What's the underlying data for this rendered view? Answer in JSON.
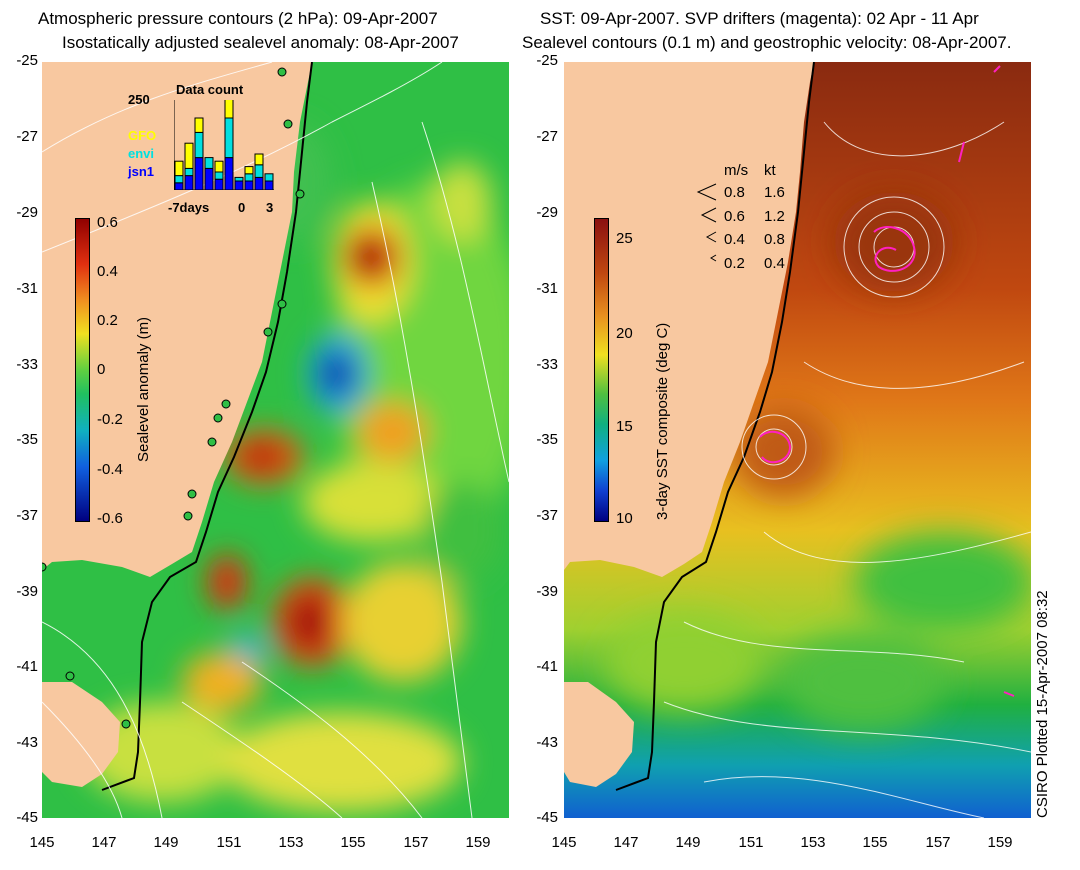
{
  "left_panel": {
    "title_line1": "Atmospheric pressure contours (2 hPa): 09-Apr-2007",
    "title_line2": "Isostatically adjusted sealevel anomaly: 08-Apr-2007",
    "colorbar": {
      "label": "Sealevel anomaly (m)",
      "ticks": [
        "0.6",
        "0.4",
        "0.2",
        "0",
        "-0.2",
        "-0.4",
        "-0.6"
      ],
      "range": [
        -0.6,
        0.6
      ]
    },
    "inset": {
      "title": "Data count",
      "ymax_label": "250",
      "legend": [
        {
          "name": "GFO",
          "color": "#ffff00"
        },
        {
          "name": "envi",
          "color": "#00e0e0"
        },
        {
          "name": "jsn1",
          "color": "#0000ff"
        }
      ],
      "x_labels": [
        "-7days",
        "0",
        "3"
      ],
      "chart_data": {
        "type": "bar",
        "categories": [
          "-7",
          "-6",
          "-5",
          "-4",
          "-3",
          "-2",
          "-1",
          "0",
          "1",
          "2"
        ],
        "series": [
          {
            "name": "jsn1",
            "values": [
              20,
              40,
              90,
              60,
              30,
              90,
              25,
              25,
              35,
              25
            ]
          },
          {
            "name": "envi",
            "values": [
              20,
              20,
              70,
              30,
              20,
              110,
              10,
              20,
              35,
              20
            ]
          },
          {
            "name": "GFO",
            "values": [
              40,
              70,
              40,
              0,
              30,
              60,
              0,
              20,
              30,
              0
            ]
          }
        ]
      }
    }
  },
  "right_panel": {
    "title_line1": "SST: 09-Apr-2007. SVP drifters (magenta): 02 Apr - 11 Apr",
    "title_line2": "Sealevel contours (0.1 m) and geostrophic velocity: 08-Apr-2007.",
    "colorbar": {
      "label": "3-day SST composite (deg C)",
      "ticks": [
        "25",
        "20",
        "15",
        "10"
      ],
      "range": [
        10,
        26
      ]
    },
    "velocity_legend": {
      "header_ms": "m/s",
      "header_kt": "kt",
      "rows": [
        {
          "ms": "0.8",
          "kt": "1.6"
        },
        {
          "ms": "0.6",
          "kt": "1.2"
        },
        {
          "ms": "0.4",
          "kt": "0.8"
        },
        {
          "ms": "0.2",
          "kt": "0.4"
        }
      ]
    }
  },
  "axes": {
    "lat_labels": [
      "-25",
      "-27",
      "-29",
      "-31",
      "-33",
      "-35",
      "-37",
      "-39",
      "-41",
      "-43",
      "-45"
    ],
    "lon_labels": [
      "145",
      "147",
      "149",
      "151",
      "153",
      "155",
      "157",
      "159"
    ],
    "lat_range": [
      -45,
      -25
    ],
    "lon_range": [
      145,
      160
    ]
  },
  "credit": "CSIRO Plotted 15-Apr-2007 08:32"
}
